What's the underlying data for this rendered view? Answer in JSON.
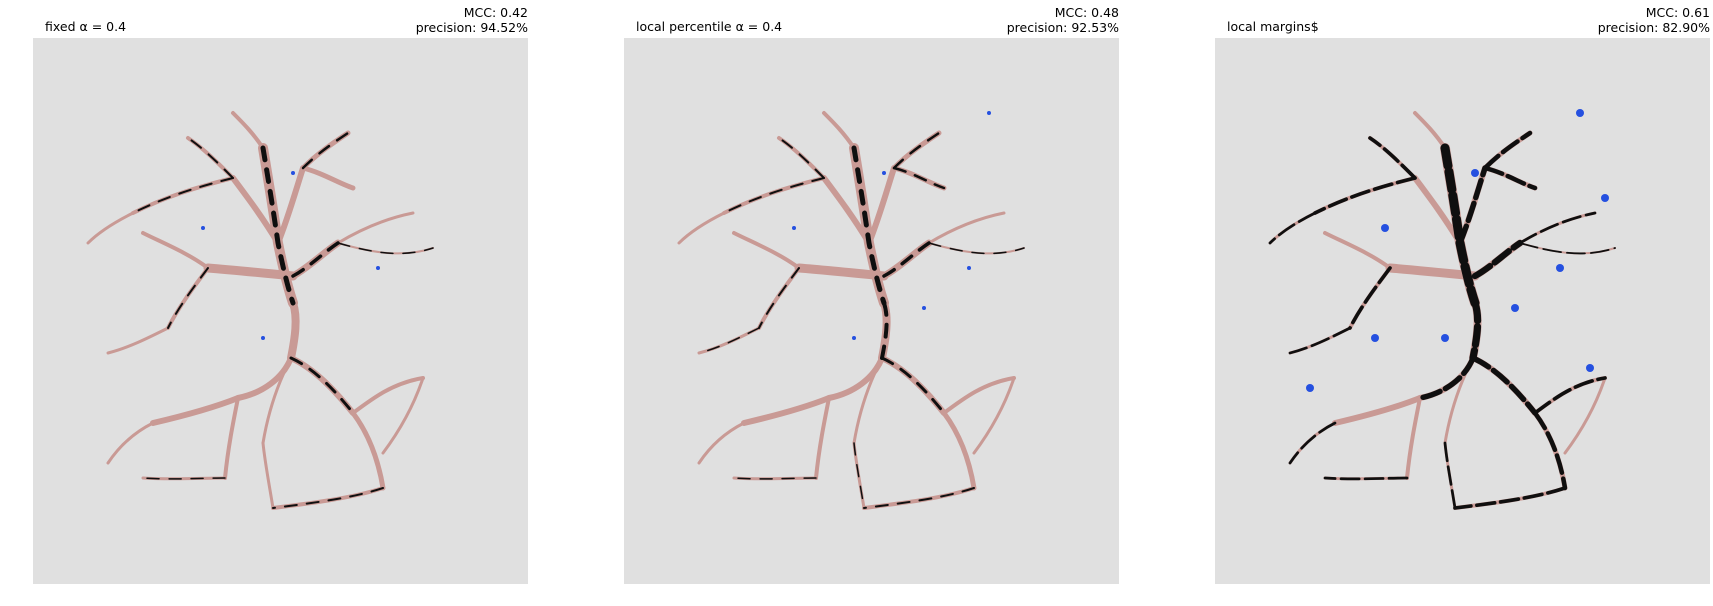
{
  "colors": {
    "background": "#e0e0e0",
    "vessel_ground_truth": "#c99a95",
    "true_positive": "#0f0f0f",
    "false_positive": "#2550e0"
  },
  "panels": [
    {
      "title": "fixed α = 0.4",
      "mcc": "MCC: 0.42",
      "precision": "precision: 94.52%"
    },
    {
      "title": "local percentile α = 0.4",
      "mcc": "MCC: 0.48",
      "precision": "precision: 92.53%"
    },
    {
      "title": "local margins$",
      "mcc": "MCC: 0.61",
      "precision": "precision: 82.90%"
    }
  ]
}
